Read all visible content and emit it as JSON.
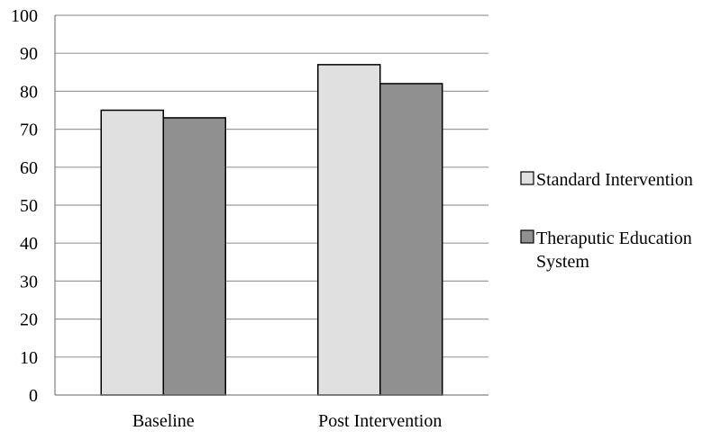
{
  "chart_data": {
    "type": "bar",
    "title": "",
    "xlabel": "",
    "ylabel": "",
    "categories": [
      "Baseline",
      "Post Intervention"
    ],
    "series": [
      {
        "name": "Standard Intervention",
        "values": [
          75,
          87
        ],
        "color": "#e0e0e0"
      },
      {
        "name": "Theraputic Education System",
        "legend_lines": [
          "Theraputic Education",
          "System"
        ],
        "values": [
          73,
          82
        ],
        "color": "#909090"
      }
    ],
    "ylim": [
      0,
      100
    ],
    "yticks": [
      0,
      10,
      20,
      30,
      40,
      50,
      60,
      70,
      80,
      90,
      100
    ],
    "grid": true,
    "legend_position": "right",
    "colors": {
      "grid": "#9a9a9a",
      "axis": "#808080",
      "bar_outline": "#000000"
    }
  }
}
